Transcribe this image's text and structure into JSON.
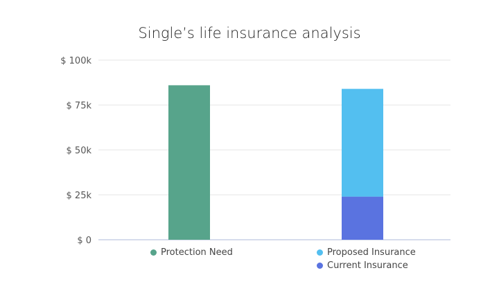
{
  "chart_data": {
    "type": "bar",
    "stacked": true,
    "title": "Single’s life insurance analysis",
    "xlabel": "",
    "ylabel": "",
    "ylim": [
      0,
      100000
    ],
    "y_ticks": [
      {
        "value": 0,
        "label": "$ 0"
      },
      {
        "value": 25000,
        "label": "$ 25k"
      },
      {
        "value": 50000,
        "label": "$ 50k"
      },
      {
        "value": 75000,
        "label": "$ 75k"
      },
      {
        "value": 100000,
        "label": "$ 100k"
      }
    ],
    "grid": true,
    "legend_placement": "bottom",
    "groups": [
      {
        "series": [
          {
            "name": "Protection Need",
            "value": 86000,
            "color": "#57a48b"
          }
        ]
      },
      {
        "series": [
          {
            "name": "Current Insurance",
            "value": 24000,
            "color": "#5a73e0"
          },
          {
            "name": "Proposed Insurance",
            "value": 60000,
            "color": "#53bff0"
          }
        ]
      }
    ]
  }
}
